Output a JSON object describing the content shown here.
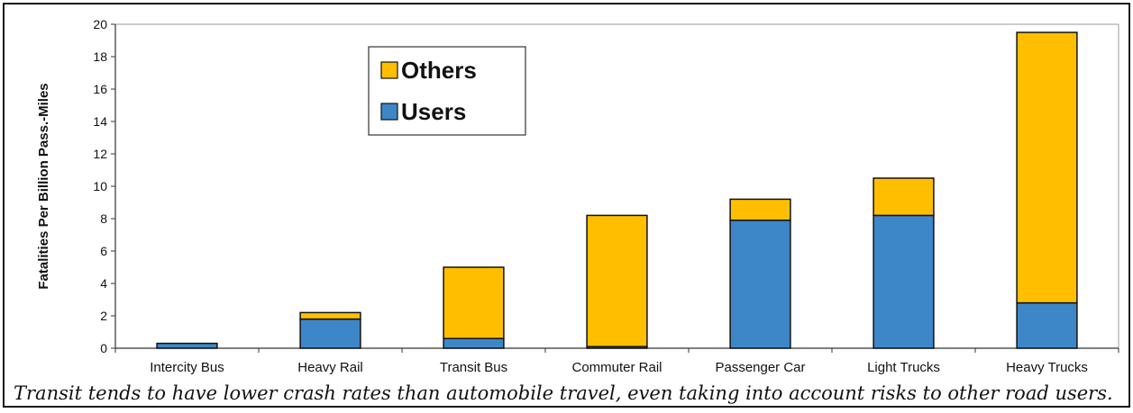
{
  "chart_data": {
    "type": "bar",
    "stacked": true,
    "categories": [
      "Intercity Bus",
      "Heavy Rail",
      "Transit Bus",
      "Commuter Rail",
      "Passenger Car",
      "Light Trucks",
      "Heavy Trucks"
    ],
    "series": [
      {
        "name": "Users",
        "color": "#3d87c9",
        "values": [
          0.3,
          1.8,
          0.6,
          0.1,
          7.9,
          8.2,
          2.8
        ]
      },
      {
        "name": "Others",
        "color": "#ffbf00",
        "values": [
          0.0,
          0.4,
          4.4,
          8.1,
          1.3,
          2.3,
          16.7
        ]
      }
    ],
    "ylabel": "Fatalities Per Billion Pass.-Miles",
    "ylim": [
      0,
      20
    ],
    "yticks": [
      0,
      2,
      4,
      6,
      8,
      10,
      12,
      14,
      16,
      18,
      20
    ],
    "legend": {
      "placement": "top-left",
      "order": [
        "Others",
        "Users"
      ]
    },
    "grid": false
  },
  "caption": "Transit tends to have lower crash rates than automobile travel, even taking into account risks to other road users."
}
